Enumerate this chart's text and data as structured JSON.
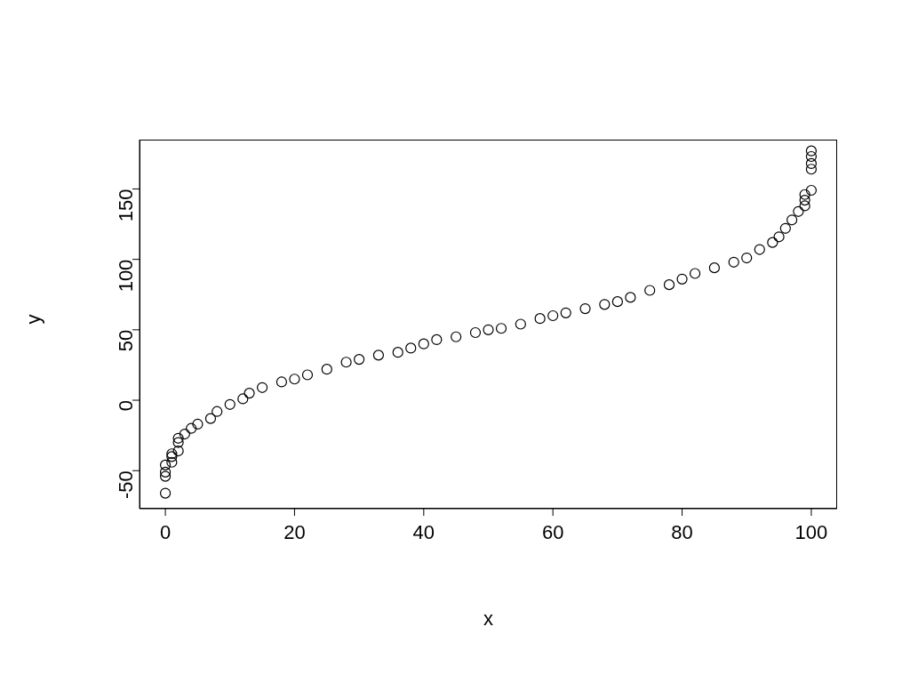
{
  "chart_data": {
    "type": "scatter",
    "xlabel": "x",
    "ylabel": "y",
    "marker": "circle",
    "grid": false,
    "legend": false,
    "xlim": [
      -4,
      104
    ],
    "ylim": [
      -77,
      185
    ],
    "xticks": [
      0,
      20,
      40,
      60,
      80,
      100
    ],
    "yticks": [
      -50,
      0,
      50,
      100,
      150
    ],
    "series": [
      {
        "color": "#000000",
        "x": [
          0,
          0,
          0,
          0,
          1,
          1,
          1,
          2,
          2,
          2,
          3,
          4,
          5,
          7,
          8,
          10,
          12,
          13,
          15,
          18,
          20,
          22,
          25,
          28,
          30,
          33,
          36,
          38,
          40,
          42,
          45,
          48,
          50,
          52,
          55,
          58,
          60,
          62,
          65,
          68,
          70,
          72,
          75,
          78,
          80,
          82,
          85,
          88,
          90,
          92,
          94,
          95,
          96,
          97,
          98,
          99,
          99,
          99,
          100,
          100,
          100,
          100,
          100
        ],
        "values": [
          -66,
          -54,
          -51,
          -46,
          -44,
          -40,
          -38,
          -36,
          -30,
          -27,
          -24,
          -20,
          -17,
          -13,
          -8,
          -3,
          1,
          5,
          9,
          13,
          15,
          18,
          22,
          27,
          29,
          32,
          34,
          37,
          40,
          43,
          45,
          48,
          50,
          51,
          54,
          58,
          60,
          62,
          65,
          68,
          70,
          73,
          78,
          82,
          86,
          90,
          94,
          98,
          101,
          107,
          112,
          116,
          122,
          128,
          134,
          138,
          142,
          146,
          149,
          164,
          168,
          173,
          177
        ]
      }
    ]
  }
}
